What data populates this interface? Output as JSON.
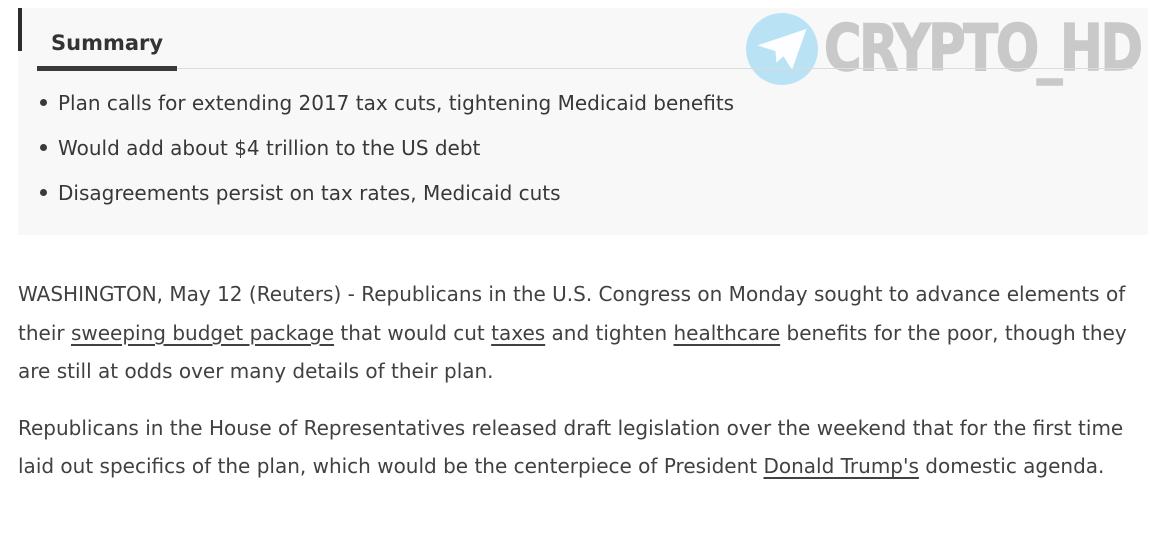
{
  "watermark": {
    "text": "CRYPTO_HD",
    "icon": "telegram-plane-icon",
    "circle_color": "#b9e3f5",
    "plane_color": "#fdfeff",
    "text_color": "#c9c9c9"
  },
  "summary": {
    "title": "Summary",
    "bullets": [
      "Plan calls for extending 2017 tax cuts, tightening Medicaid benefits",
      "Would add about $4 trillion to the US debt",
      "Disagreements persist on tax rates, Medicaid cuts"
    ],
    "background_color": "#f8f8f8",
    "tab_bar_color": "#3a3a3a",
    "divider_color": "#dbdbdb"
  },
  "article": {
    "text_color": "#414141",
    "paragraphs": [
      {
        "segments": [
          {
            "text": "WASHINGTON, May 12 (Reuters) - Republicans in the U.S. Congress on Monday sought to advance elements of their ",
            "link": false
          },
          {
            "text": "sweeping budget package",
            "link": true
          },
          {
            "text": " that would cut ",
            "link": false
          },
          {
            "text": "taxes",
            "link": true
          },
          {
            "text": " and tighten ",
            "link": false
          },
          {
            "text": "healthcare",
            "link": true
          },
          {
            "text": " benefits for the poor, though they are still at odds over many details of their plan.",
            "link": false
          }
        ]
      },
      {
        "segments": [
          {
            "text": "Republicans in the House of Representatives released draft legislation over the weekend that for the first time laid out specifics of the plan, which would be the centerpiece of President ",
            "link": false
          },
          {
            "text": "Donald Trump's",
            "link": true
          },
          {
            "text": " domestic agenda.",
            "link": false
          }
        ]
      }
    ]
  }
}
